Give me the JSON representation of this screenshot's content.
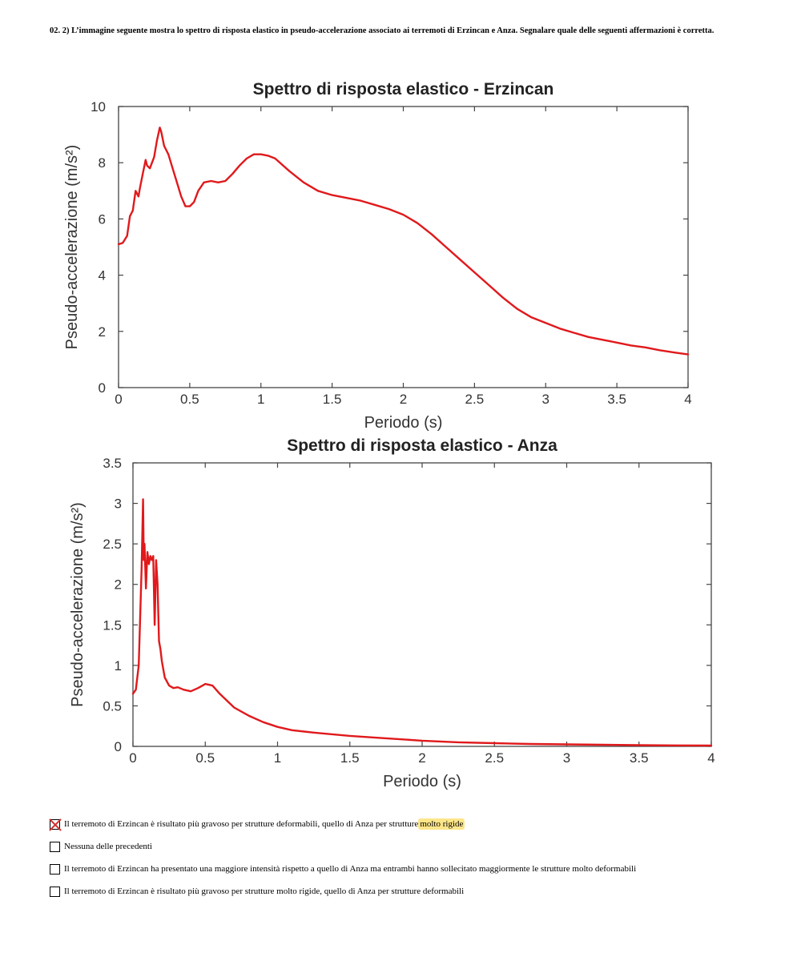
{
  "question": {
    "text": "02.   2) L’immagine seguente mostra lo spettro di risposta elastico in pseudo-accelerazione associato ai terremoti di Erzincan e Anza. Segnalare quale delle seguenti affermazioni è corretta."
  },
  "chart_data": [
    {
      "type": "line",
      "title": "Spettro di risposta elastico - Erzincan",
      "xlabel": "Periodo (s)",
      "ylabel": "Pseudo-accelerazione (m/s²)",
      "xlim": [
        0,
        4
      ],
      "ylim": [
        0,
        10
      ],
      "xticks": [
        "0",
        "0.5",
        "1",
        "1.5",
        "2",
        "2.5",
        "3",
        "3.5",
        "4"
      ],
      "yticks": [
        "0",
        "2",
        "4",
        "6",
        "8",
        "10"
      ],
      "grid": false,
      "color": "#e0191c",
      "series": [
        {
          "x": [
            0,
            0.03,
            0.06,
            0.08,
            0.1,
            0.12,
            0.14,
            0.15,
            0.17,
            0.19,
            0.2,
            0.22,
            0.25,
            0.27,
            0.29,
            0.3,
            0.32,
            0.35,
            0.38,
            0.41,
            0.44,
            0.47,
            0.5,
            0.53,
            0.56,
            0.6,
            0.65,
            0.7,
            0.75,
            0.8,
            0.85,
            0.9,
            0.95,
            1.0,
            1.05,
            1.1,
            1.2,
            1.3,
            1.4,
            1.5,
            1.6,
            1.7,
            1.8,
            1.9,
            2.0,
            2.1,
            2.2,
            2.3,
            2.4,
            2.5,
            2.6,
            2.7,
            2.8,
            2.9,
            3.0,
            3.1,
            3.2,
            3.3,
            3.4,
            3.5,
            3.6,
            3.7,
            3.8,
            3.9,
            4.0
          ],
          "y": [
            5.1,
            5.15,
            5.4,
            6.1,
            6.3,
            7.0,
            6.8,
            7.1,
            7.6,
            8.1,
            7.9,
            7.8,
            8.2,
            8.8,
            9.25,
            9.1,
            8.6,
            8.3,
            7.8,
            7.3,
            6.8,
            6.45,
            6.45,
            6.6,
            7.0,
            7.3,
            7.35,
            7.3,
            7.35,
            7.6,
            7.9,
            8.15,
            8.3,
            8.3,
            8.25,
            8.15,
            7.7,
            7.3,
            7.0,
            6.85,
            6.75,
            6.65,
            6.5,
            6.35,
            6.15,
            5.85,
            5.45,
            5.0,
            4.55,
            4.1,
            3.65,
            3.2,
            2.8,
            2.5,
            2.3,
            2.1,
            1.95,
            1.8,
            1.7,
            1.6,
            1.5,
            1.43,
            1.33,
            1.25,
            1.18
          ]
        }
      ]
    },
    {
      "type": "line",
      "title": "Spettro di risposta elastico - Anza",
      "xlabel": "Periodo (s)",
      "ylabel": "Pseudo-accelerazione (m/s²)",
      "xlim": [
        0,
        4
      ],
      "ylim": [
        0,
        3.5
      ],
      "xticks": [
        "0",
        "0.5",
        "1",
        "1.5",
        "2",
        "2.5",
        "3",
        "3.5",
        "4"
      ],
      "yticks": [
        "0",
        "0.5",
        "1",
        "1.5",
        "2",
        "2.5",
        "3",
        "3.5"
      ],
      "grid": false,
      "color": "#e0191c",
      "series": [
        {
          "x": [
            0,
            0.02,
            0.04,
            0.05,
            0.06,
            0.07,
            0.075,
            0.08,
            0.09,
            0.1,
            0.11,
            0.12,
            0.13,
            0.14,
            0.15,
            0.16,
            0.17,
            0.18,
            0.19,
            0.2,
            0.22,
            0.25,
            0.28,
            0.31,
            0.35,
            0.4,
            0.45,
            0.5,
            0.55,
            0.6,
            0.7,
            0.8,
            0.9,
            1.0,
            1.1,
            1.25,
            1.5,
            1.75,
            2.0,
            2.25,
            2.5,
            2.75,
            3.0,
            3.25,
            3.5,
            3.75,
            4.0
          ],
          "y": [
            0.65,
            0.7,
            1.0,
            1.6,
            2.2,
            3.05,
            2.3,
            2.5,
            1.95,
            2.4,
            2.25,
            2.35,
            2.3,
            2.35,
            1.5,
            2.3,
            2.0,
            1.3,
            1.2,
            1.05,
            0.85,
            0.75,
            0.72,
            0.73,
            0.7,
            0.68,
            0.72,
            0.77,
            0.75,
            0.65,
            0.48,
            0.38,
            0.3,
            0.24,
            0.2,
            0.17,
            0.13,
            0.1,
            0.07,
            0.05,
            0.04,
            0.03,
            0.025,
            0.02,
            0.015,
            0.012,
            0.01
          ]
        }
      ]
    }
  ],
  "options": [
    {
      "text": "Il terremoto di Erzincan è risultato più gravoso per strutture deformabili, quello di Anza per strutture ",
      "highlight": "molto rigide",
      "checked": true
    },
    {
      "text": "Nessuna delle precedenti",
      "highlight": "",
      "checked": false
    },
    {
      "text": "Il terremoto di Erzincan ha presentato una maggiore intensità rispetto a quello di Anza ma entrambi hanno sollecitato maggiormente le strutture molto deformabili",
      "highlight": "",
      "checked": false
    },
    {
      "text": "Il terremoto di Erzincan è risultato più gravoso per strutture molto rigide, quello di Anza per strutture deformabili",
      "highlight": "",
      "checked": false
    }
  ]
}
